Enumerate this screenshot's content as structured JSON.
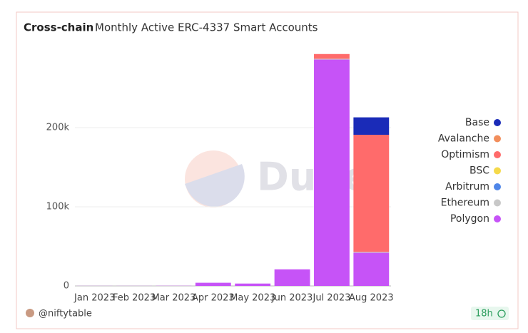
{
  "chart_data": {
    "type": "stacked_bar",
    "title": "Cross-chain",
    "subtitle": "Monthly Active ERC-4337 Smart Accounts",
    "categories": [
      "Jan 2023",
      "Feb 2023",
      "Mar 2023",
      "Apr 2023",
      "May 2023",
      "Jun 2023",
      "Jul 2023",
      "Aug 2023"
    ],
    "series": [
      {
        "name": "Base",
        "color": "#1a2bb8",
        "values": [
          0,
          0,
          0,
          0,
          0,
          0,
          0,
          22000
        ]
      },
      {
        "name": "Avalanche",
        "color": "#f28e5c",
        "values": [
          0,
          0,
          0,
          0,
          0,
          0,
          0,
          0
        ]
      },
      {
        "name": "Optimism",
        "color": "#ff6b6b",
        "values": [
          0,
          0,
          0,
          0,
          0,
          0,
          6000,
          148000
        ]
      },
      {
        "name": "BSC",
        "color": "#f5d94a",
        "values": [
          0,
          0,
          0,
          0,
          0,
          0,
          0,
          0
        ]
      },
      {
        "name": "Arbitrum",
        "color": "#4f86e8",
        "values": [
          0,
          0,
          0,
          0,
          0,
          0,
          0,
          0
        ]
      },
      {
        "name": "Ethereum",
        "color": "#c8c8c8",
        "values": [
          0,
          0,
          0,
          0,
          0,
          0,
          1000,
          1000
        ]
      },
      {
        "name": "Polygon",
        "color": "#c653f7",
        "values": [
          100,
          100,
          200,
          4000,
          3000,
          21000,
          286000,
          42000
        ]
      }
    ],
    "ylim": [
      0,
      300000
    ],
    "yticks": [
      0,
      {
        "value": 100000,
        "label": "100k"
      },
      {
        "value": 200000,
        "label": "200k"
      }
    ],
    "grid": true,
    "legend": "right",
    "watermark": "Dune",
    "author": "@niftytable",
    "age": "18h"
  }
}
